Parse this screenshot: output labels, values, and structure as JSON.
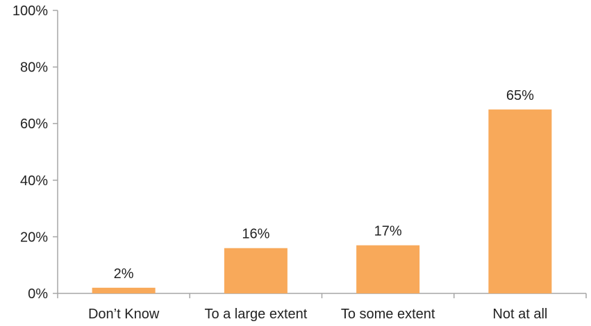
{
  "chart_data": {
    "type": "bar",
    "categories": [
      "Don’t Know",
      "To a large extent",
      "To some extent",
      "Not at all"
    ],
    "values": [
      2,
      16,
      17,
      65
    ],
    "data_labels": [
      "2%",
      "16%",
      "17%",
      "65%"
    ],
    "title": "",
    "xlabel": "",
    "ylabel": "",
    "ylim": [
      0,
      100
    ],
    "y_ticks": [
      0,
      20,
      40,
      60,
      80,
      100
    ],
    "y_tick_labels": [
      "0%",
      "20%",
      "40%",
      "60%",
      "80%",
      "100%"
    ],
    "grid": false,
    "legend": "none",
    "colors": {
      "bar": "#F8A95A",
      "axis": "#A6A6A6",
      "text": "#222222"
    }
  }
}
